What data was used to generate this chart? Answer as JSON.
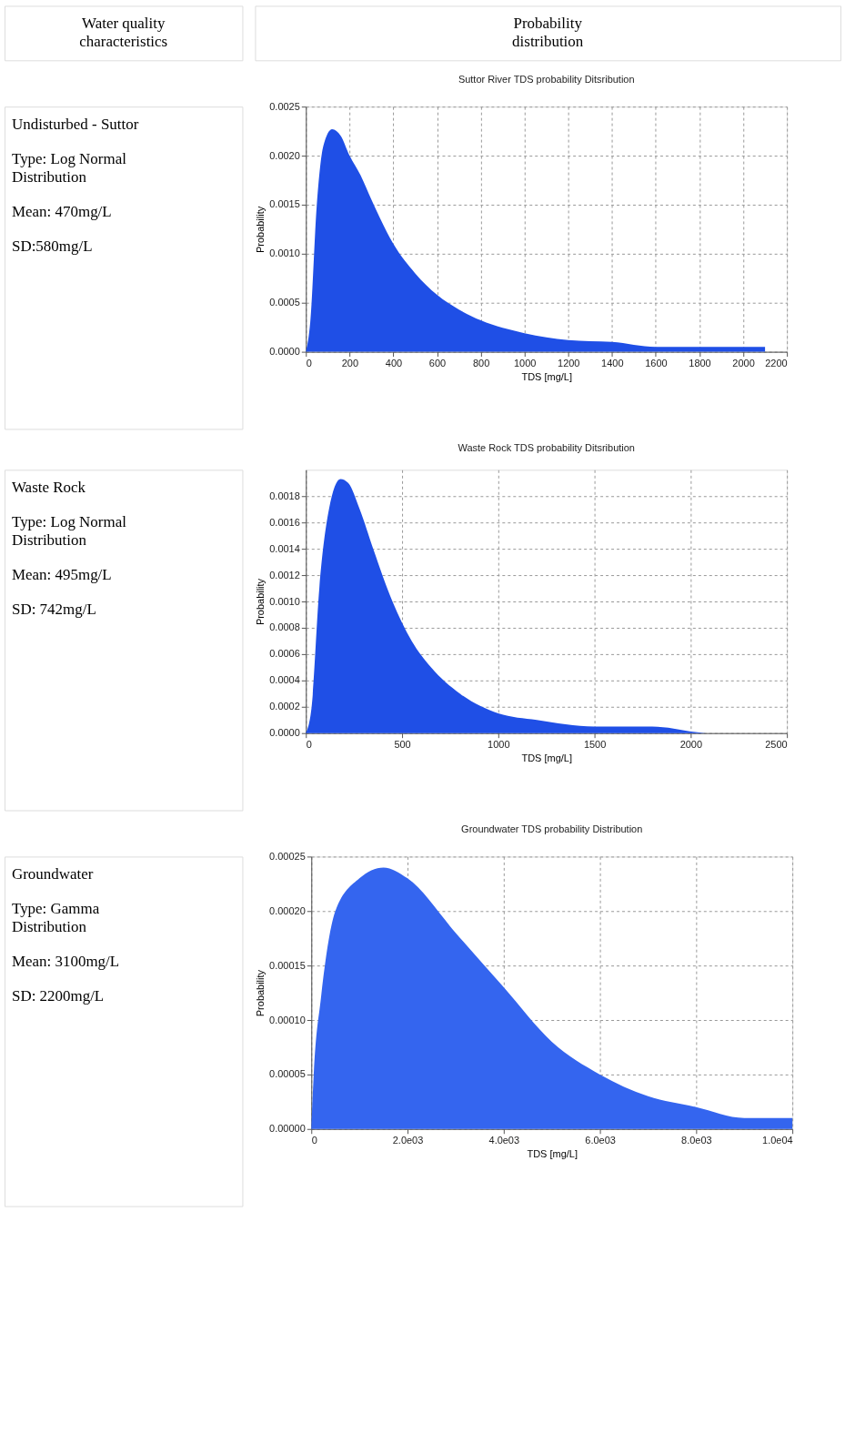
{
  "chart_data": [
    {
      "type": "other",
      "title": "Water quality characteristics"
    },
    {
      "type": "other",
      "title": "Probability distribution"
    },
    {
      "type": "other",
      "title": "Undisturbed - Suttor",
      "annotations": [
        "Type: Log Normal Distribution",
        "Mean: 470mg/L",
        "SD:580mg/L"
      ]
    },
    {
      "type": "area",
      "title": "Suttor River TDS probability Ditsribution",
      "xlabel": "TDS [mg/L]",
      "ylabel": "Probability",
      "x": [
        0,
        20,
        50,
        80,
        120,
        160,
        200,
        250,
        300,
        400,
        500,
        600,
        700,
        800,
        1000,
        1200,
        1400,
        1600,
        1800,
        2000,
        2100
      ],
      "series": [
        {
          "color": "#1f4fe6",
          "values": [
            0,
            0.0003,
            0.0015,
            0.0021,
            0.00227,
            0.0022,
            0.002,
            0.0018,
            0.00155,
            0.0011,
            0.0008,
            0.00058,
            0.00043,
            0.00032,
            0.00019,
            0.00012,
            0.0001,
            5e-05,
            5e-05,
            5e-05,
            5e-05
          ]
        }
      ],
      "xlim": [
        0,
        2200
      ],
      "xticks": [
        0,
        200,
        400,
        600,
        800,
        1000,
        1200,
        1400,
        1600,
        1800,
        2000,
        2200
      ],
      "ylim": [
        0,
        0.0025
      ],
      "yticks": [
        {
          "value": 0,
          "label": "0.0000"
        },
        {
          "value": 0.0005,
          "label": "0.0005"
        },
        {
          "value": 0.001,
          "label": "0.0010"
        },
        {
          "value": 0.0015,
          "label": "0.0015"
        },
        {
          "value": 0.002,
          "label": "0.0020"
        },
        {
          "value": 0.0025,
          "label": "0.0025"
        }
      ],
      "grid": true
    },
    {
      "type": "other",
      "title": "Waste Rock",
      "annotations": [
        "Type: Log Normal Distribution",
        "Mean: 495mg/L",
        "SD: 742mg/L"
      ]
    },
    {
      "type": "area",
      "title": "Waste Rock TDS probability Ditsribution",
      "xlabel": "TDS [mg/L]",
      "ylabel": "Probability",
      "x": [
        0,
        30,
        70,
        120,
        180,
        220,
        280,
        350,
        450,
        550,
        650,
        800,
        1000,
        1200,
        1500,
        1800,
        2100,
        2500
      ],
      "series": [
        {
          "color": "#1f4fe6",
          "values": [
            0,
            0.0002,
            0.0011,
            0.0017,
            0.00193,
            0.0019,
            0.0017,
            0.0014,
            0.001,
            0.0007,
            0.0005,
            0.0003,
            0.00015,
            0.0001,
            5e-05,
            5e-05,
            0,
            0
          ]
        }
      ],
      "xlim": [
        0,
        2500
      ],
      "xticks": [
        0,
        500,
        1000,
        1500,
        2000,
        2500
      ],
      "ylim": [
        0,
        0.002
      ],
      "yticks": [
        {
          "value": 0,
          "label": "0.0000"
        },
        0.0002,
        0.0004,
        0.0006,
        0.0008,
        {
          "value": 0.001,
          "label": "0.0010"
        },
        0.0012,
        0.0014,
        0.0016,
        0.0018
      ],
      "grid": true
    },
    {
      "type": "other",
      "title": "Groundwater",
      "annotations": [
        "Type: Gamma Distribution",
        "Mean: 3100mg/L",
        "SD: 2200mg/L"
      ]
    },
    {
      "type": "area",
      "title": "Groundwater TDS probability Distribution",
      "xlabel": "TDS [mg/L]",
      "ylabel": "Probability",
      "x": [
        0,
        50,
        200,
        500,
        1000,
        1500,
        2000,
        3000,
        4000,
        5000,
        6000,
        7000,
        8000,
        9000,
        10000
      ],
      "series": [
        {
          "color": "#3465ef",
          "values": [
            0,
            5e-05,
            0.00012,
            0.0002,
            0.00023,
            0.00024,
            0.00023,
            0.00018,
            0.00013,
            8e-05,
            5e-05,
            3e-05,
            2e-05,
            1e-05,
            1e-05
          ]
        }
      ],
      "xlim": [
        0,
        10000
      ],
      "xticks": [
        0,
        {
          "value": 2000,
          "label": "2.0e03"
        },
        {
          "value": 4000,
          "label": "4.0e03"
        },
        {
          "value": 6000,
          "label": "6.0e03"
        },
        {
          "value": 8000,
          "label": "8.0e03"
        },
        {
          "value": 10000,
          "label": "1.0e04"
        }
      ],
      "ylim": [
        0,
        0.00025
      ],
      "yticks": [
        {
          "value": 0,
          "label": "0.00000"
        },
        {
          "value": 5e-05,
          "label": "0.00005"
        },
        {
          "value": 0.0001,
          "label": "0.00010"
        },
        {
          "value": 0.00015,
          "label": "0.00015"
        },
        {
          "value": 0.0002,
          "label": "0.00020"
        },
        {
          "value": 0.00025,
          "label": "0.00025"
        }
      ],
      "grid": true
    }
  ]
}
